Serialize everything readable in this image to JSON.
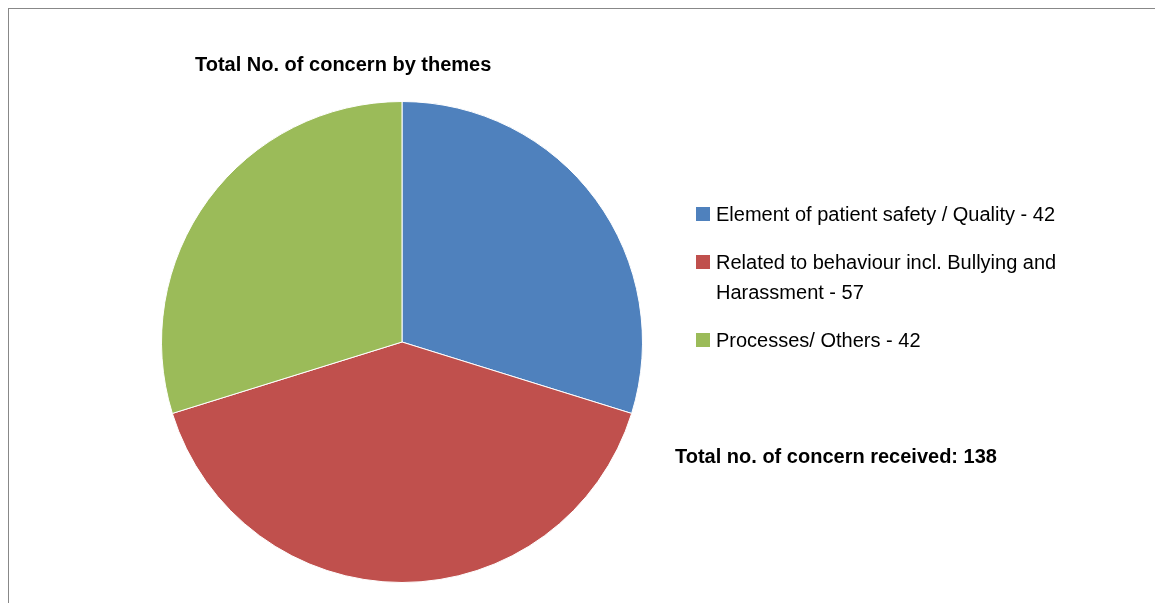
{
  "chart_data": {
    "type": "pie",
    "title": "Total No. of concern by themes",
    "categories": [
      "Element of patient safety / Quality - 42",
      "Related to behaviour incl.  Bullying and Harassment - 57",
      "Processes/ Others - 42"
    ],
    "values": [
      29.8,
      40.4,
      29.8
    ],
    "colors": [
      "#4f81bd",
      "#c0504d",
      "#9bbb59"
    ],
    "legend": "right",
    "annotations": [
      "Total no. of concern received: 138"
    ]
  }
}
